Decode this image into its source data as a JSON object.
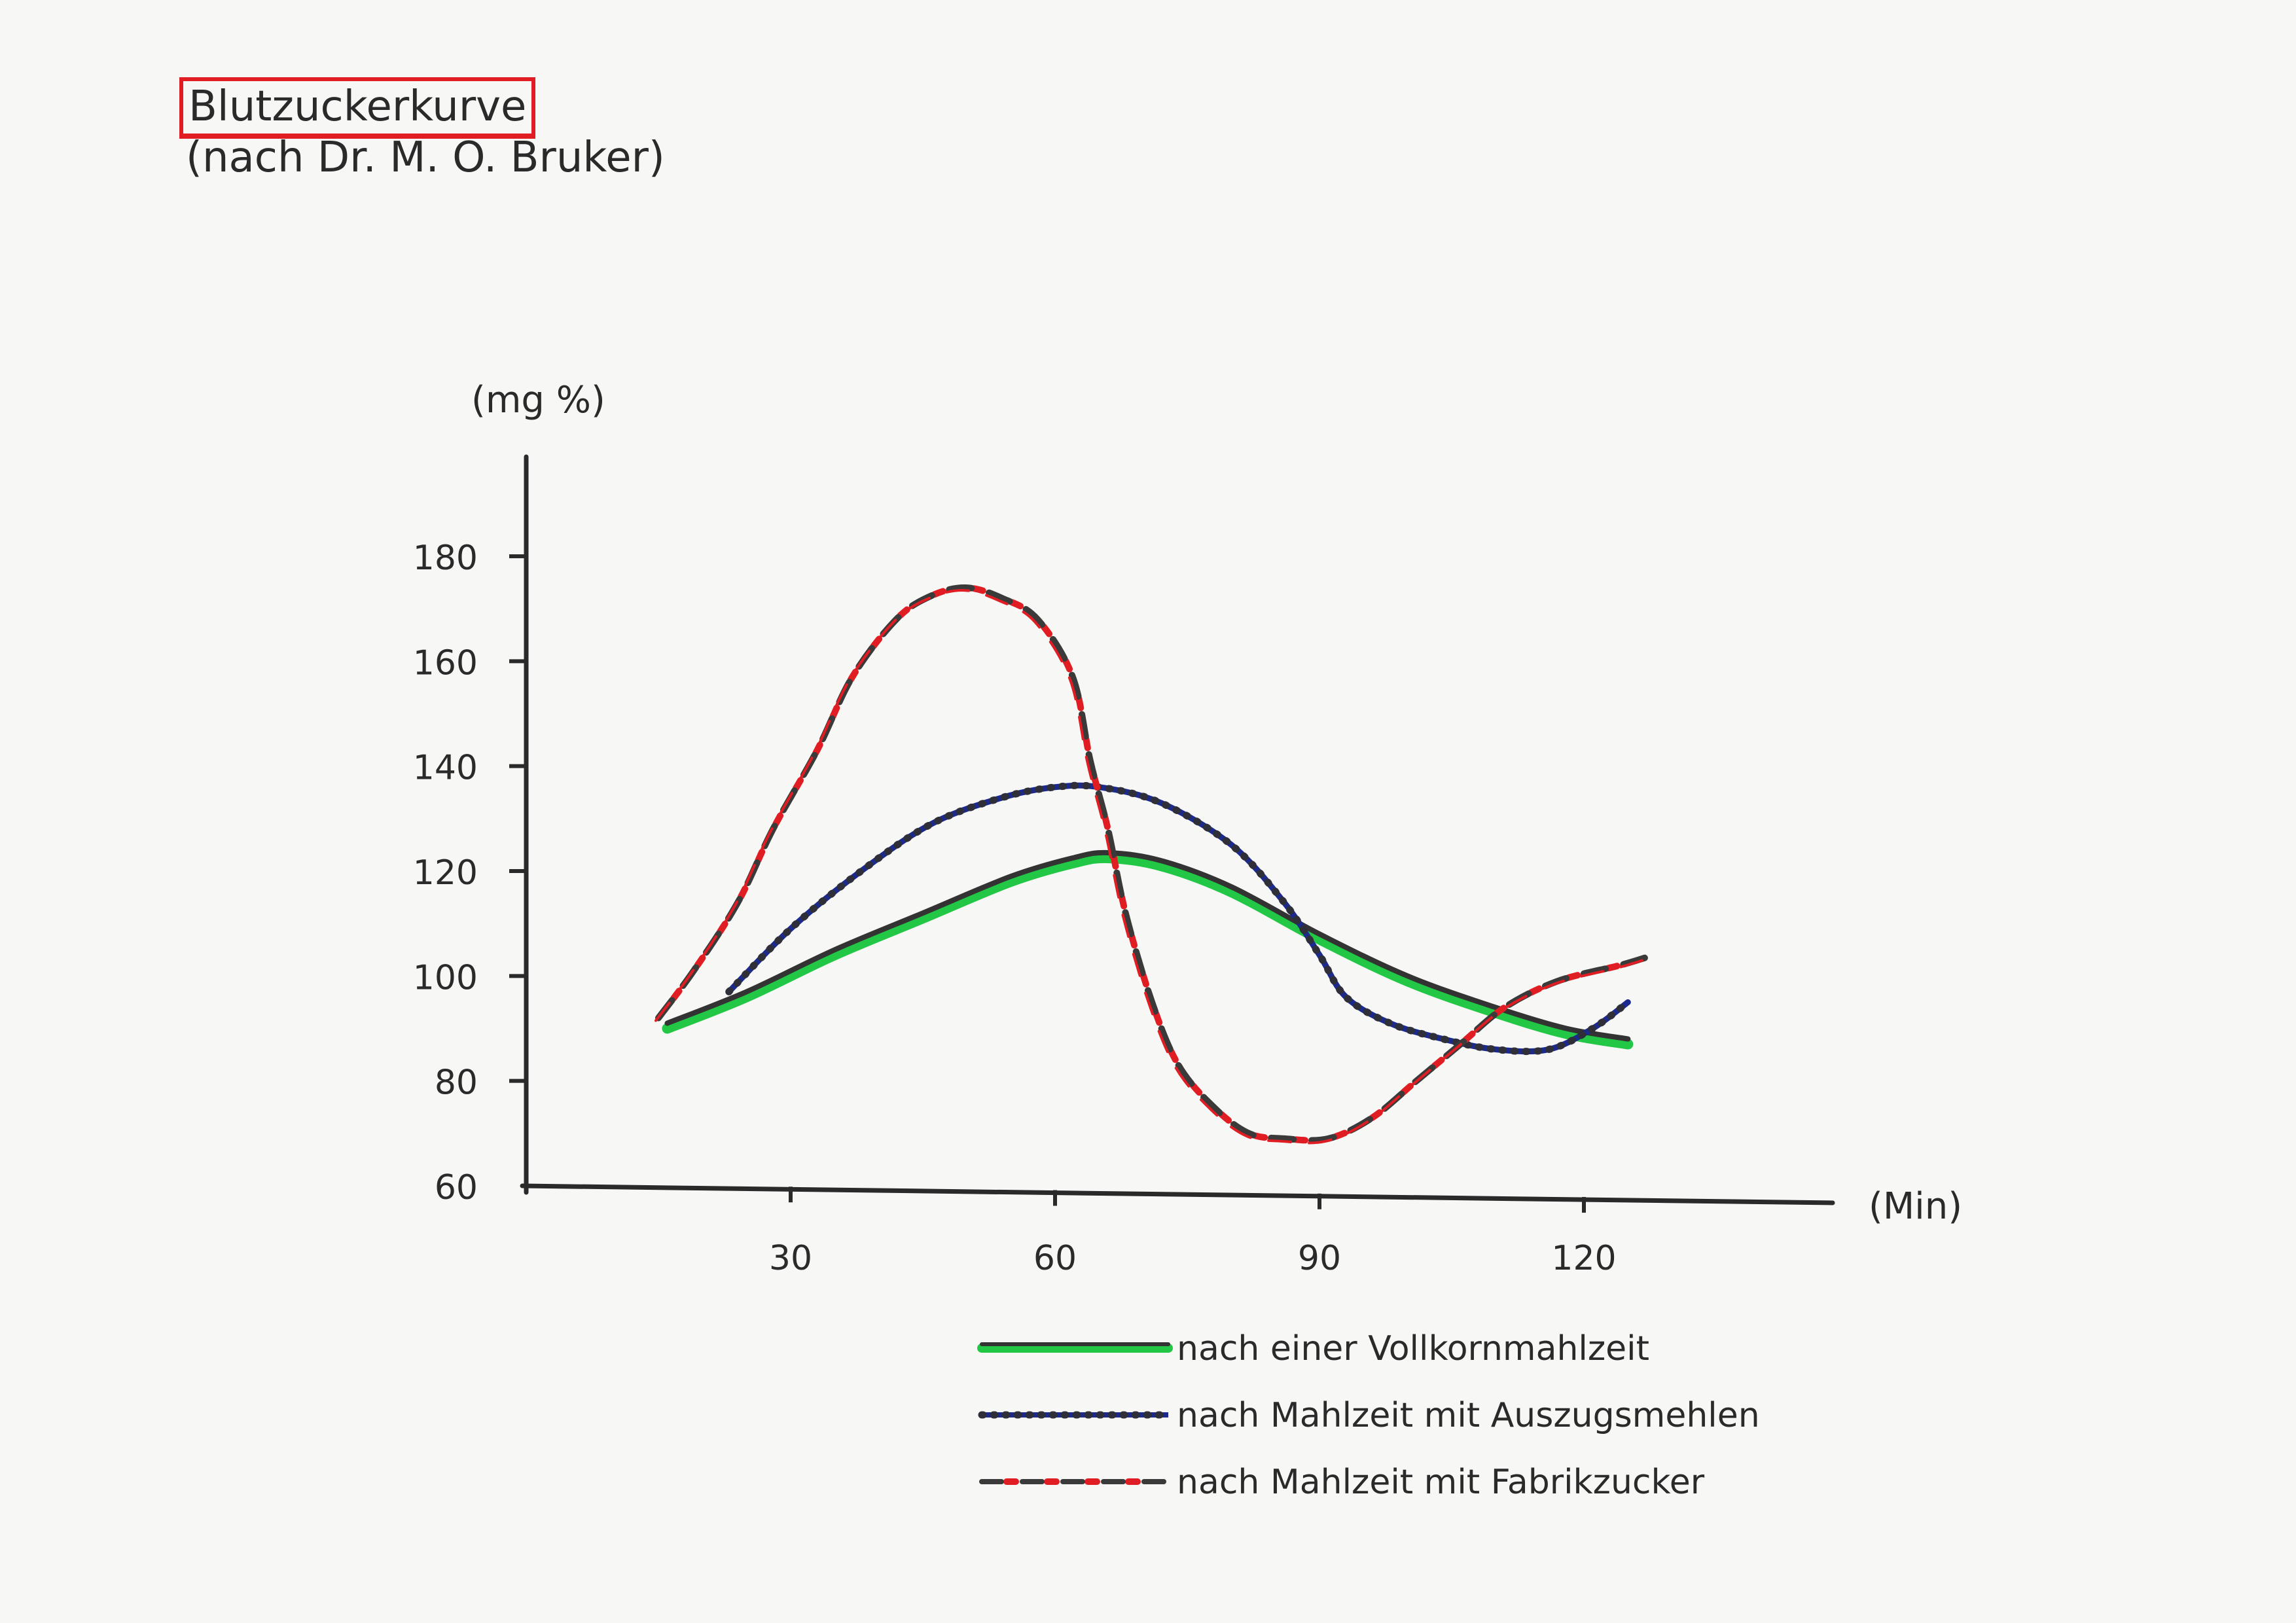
{
  "chart_data": {
    "type": "line",
    "title": "Blutzuckerkurve",
    "subtitle": "(nach Dr. M. O. Bruker)",
    "ylabel": "(mg %)",
    "xlabel": "(Min)",
    "ylim": [
      60,
      200
    ],
    "xlim": [
      0,
      150
    ],
    "yticks": [
      60,
      80,
      100,
      120,
      140,
      160,
      180
    ],
    "xticks": [
      30,
      60,
      90,
      120
    ],
    "legend_position": "bottom-right",
    "series": [
      {
        "name": "nach einer Vollkornmahlzeit",
        "color": "#22c745",
        "style": "solid",
        "points": [
          [
            16,
            90
          ],
          [
            25,
            96
          ],
          [
            35,
            104
          ],
          [
            45,
            111
          ],
          [
            55,
            118
          ],
          [
            62,
            121.5
          ],
          [
            66,
            122.5
          ],
          [
            72,
            121
          ],
          [
            80,
            116
          ],
          [
            90,
            107
          ],
          [
            100,
            99
          ],
          [
            110,
            93
          ],
          [
            118,
            89
          ],
          [
            125,
            87
          ]
        ]
      },
      {
        "name": "nach Mahlzeit mit Auszugsmehlen",
        "color": "#1b2a8c",
        "style": "dotted",
        "points": [
          [
            23,
            97
          ],
          [
            30,
            109
          ],
          [
            38,
            120
          ],
          [
            46,
            129
          ],
          [
            54,
            134
          ],
          [
            60,
            136
          ],
          [
            65,
            136
          ],
          [
            72,
            133
          ],
          [
            80,
            125
          ],
          [
            86,
            114
          ],
          [
            90,
            104
          ],
          [
            93,
            96
          ],
          [
            98,
            91
          ],
          [
            104,
            88
          ],
          [
            110,
            86
          ],
          [
            116,
            86
          ],
          [
            121,
            90
          ],
          [
            125,
            95
          ]
        ]
      },
      {
        "name": "nach Mahlzeit mit Fabrikzucker",
        "color": "#e11d24",
        "style": "dashed-dotted",
        "points": [
          [
            15,
            92
          ],
          [
            19,
            101
          ],
          [
            24,
            114
          ],
          [
            28,
            128
          ],
          [
            33,
            143
          ],
          [
            37,
            157
          ],
          [
            42,
            168
          ],
          [
            46,
            172.5
          ],
          [
            50,
            174
          ],
          [
            54,
            172
          ],
          [
            58,
            168
          ],
          [
            62,
            157
          ],
          [
            64,
            141
          ],
          [
            66,
            128
          ],
          [
            68,
            112
          ],
          [
            71,
            95
          ],
          [
            74,
            83
          ],
          [
            78,
            75
          ],
          [
            82,
            70
          ],
          [
            86,
            69
          ],
          [
            91,
            69
          ],
          [
            96,
            73
          ],
          [
            101,
            80
          ],
          [
            106,
            87
          ],
          [
            111,
            94
          ],
          [
            117,
            99
          ],
          [
            124,
            102
          ],
          [
            127,
            103.5
          ]
        ]
      }
    ]
  }
}
